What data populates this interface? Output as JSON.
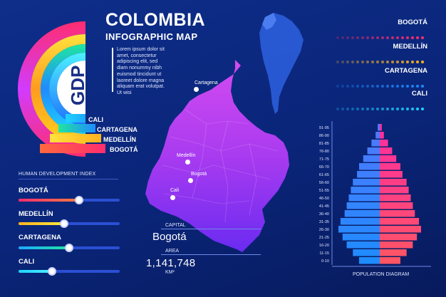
{
  "header": {
    "title": "COLOMBIA",
    "subtitle": "INFOGRAPHIC MAP",
    "lorem": "Lorem ipsum dolor sit amet, consectetur adipiscing elit, sed diam nonummy nibh euismod tincidunt ut laoreet dolore magna aliquam erat volutpat. Ut wisi"
  },
  "gdp": {
    "label": "GDP",
    "cities": [
      "CALI",
      "CARTAGENA",
      "MEDELLÍN",
      "BOGOTÁ"
    ],
    "colors": [
      "#1fd3ff",
      "#ffd21f",
      "#ff8a1f",
      "#ff2d6f"
    ]
  },
  "hdi": {
    "title": "HUMAN DEVELOPMENT INDEX",
    "items": [
      {
        "name": "BOGOTÁ",
        "value": 0.6,
        "color_from": "#ff2d6f",
        "color_to": "#ff7b3d"
      },
      {
        "name": "MEDELLÍN",
        "value": 0.45,
        "color_from": "#ffb21f",
        "color_to": "#ffe93d"
      },
      {
        "name": "CARTAGENA",
        "value": 0.5,
        "color_from": "#1fa8ff",
        "color_to": "#1fe6a0"
      },
      {
        "name": "CALI",
        "value": 0.33,
        "color_from": "#1fd3ff",
        "color_to": "#4df0ff"
      }
    ]
  },
  "map": {
    "cities": [
      "Cartagena",
      "Medellín",
      "Bogotá",
      "Cali"
    ]
  },
  "capital": {
    "label": "CAPITAL",
    "value": "Bogotá"
  },
  "area": {
    "label": "AREA",
    "value": "1,141,748",
    "unit": "KM²"
  },
  "legend": [
    {
      "name": "BOGOTÁ",
      "color": "#ff2d6f"
    },
    {
      "name": "MEDELLÍN",
      "color": "#ffb21f"
    },
    {
      "name": "CARTAGENA",
      "color": "#1f8bff"
    },
    {
      "name": "CALI",
      "color": "#1fd3ff"
    }
  ],
  "chart_data": {
    "type": "bar",
    "xlabel": "POPULATION DIAGRAM",
    "categories": [
      "91-95",
      "86-90",
      "81-85",
      "76-80",
      "71-75",
      "66-70",
      "61-65",
      "56-60",
      "51-55",
      "46-50",
      "41-45",
      "36-40",
      "31-35",
      "26-30",
      "21-25",
      "16-20",
      "11-15",
      "0-10"
    ],
    "series": [
      {
        "values": [
          0.5,
          1,
          2,
          3,
          4,
          5,
          5.5,
          6.5,
          7,
          7.5,
          8,
          8.5,
          9.5,
          10,
          9,
          8,
          6.5,
          5
        ]
      },
      {
        "values": [
          0.5,
          1,
          2,
          3,
          4,
          5,
          5.5,
          6.5,
          7,
          7.5,
          8,
          8.5,
          9.5,
          10,
          9,
          8,
          6.5,
          5
        ]
      }
    ]
  }
}
